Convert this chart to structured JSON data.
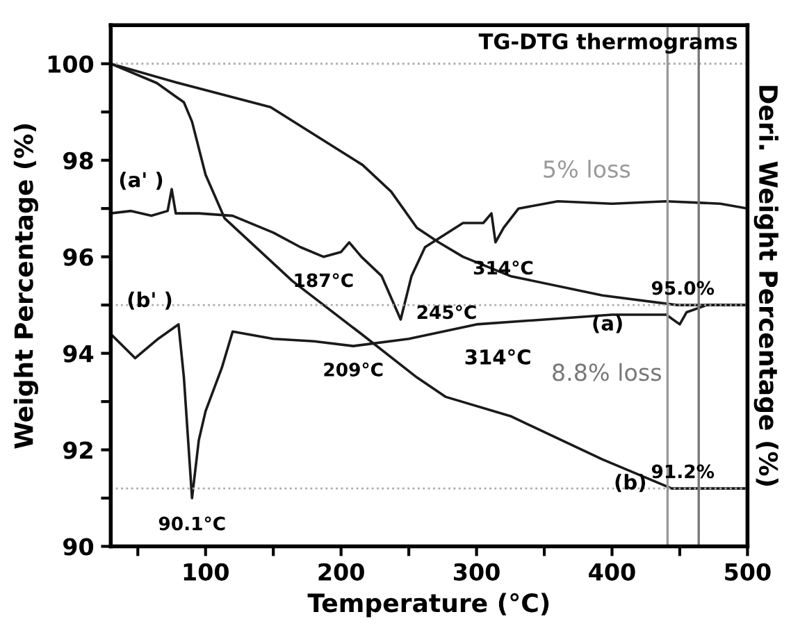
{
  "chart_data": {
    "type": "line",
    "title": "TG-DTG thermograms",
    "xlabel": "Temperature (°C)",
    "ylabel": "Weight Percentage (%)",
    "y2label": "Deri. Weight Percentage (%)",
    "xlim": [
      30,
      500
    ],
    "ylim": [
      90,
      100.8
    ],
    "xticks": [
      {
        "value": 50,
        "label": null
      },
      100,
      {
        "value": 150,
        "label": null
      },
      200,
      {
        "value": 250,
        "label": null
      },
      300,
      {
        "value": 350,
        "label": null
      },
      400,
      {
        "value": 450,
        "label": null
      },
      500
    ],
    "yticks": [
      90,
      {
        "value": 91,
        "label": null
      },
      92,
      {
        "value": 93,
        "label": null
      },
      94,
      {
        "value": 95,
        "label": null
      },
      96,
      {
        "value": 97,
        "label": null
      },
      98,
      {
        "value": 99,
        "label": null
      },
      100
    ],
    "grid": false,
    "legend": false,
    "marker": "none",
    "line_style": "solid",
    "series": [
      {
        "color": "#1a1a1a",
        "x": [
          30,
          80,
          148,
          216,
          237,
          256,
          272,
          290,
          325,
          393,
          448,
          500
        ],
        "values": [
          100.0,
          99.6,
          99.1,
          97.9,
          97.35,
          96.6,
          96.3,
          96.0,
          95.6,
          95.2,
          95.0,
          95.0
        ]
      },
      {
        "color": "#1a1a1a",
        "x": [
          30,
          64,
          84,
          90,
          100,
          114,
          164,
          215,
          256,
          277,
          325,
          393,
          444,
          500
        ],
        "values": [
          100.0,
          99.6,
          99.2,
          98.8,
          97.7,
          96.8,
          95.5,
          94.4,
          93.5,
          93.1,
          92.7,
          91.8,
          91.2,
          91.2
        ]
      },
      {
        "color": "#1a1a1a",
        "x": [
          30,
          45,
          60,
          72,
          75,
          78,
          95,
          120,
          150,
          170,
          187,
          200,
          206,
          215,
          230,
          244,
          252,
          262,
          290,
          305,
          311,
          314,
          320,
          331,
          360,
          400,
          440,
          480,
          500
        ],
        "values": [
          96.9,
          96.95,
          96.85,
          96.95,
          97.4,
          96.9,
          96.9,
          96.85,
          96.5,
          96.2,
          96.0,
          96.1,
          96.3,
          96.0,
          95.6,
          94.7,
          95.6,
          96.2,
          96.7,
          96.7,
          96.9,
          96.3,
          96.6,
          97.0,
          97.15,
          97.1,
          97.15,
          97.1,
          97.0
        ]
      },
      {
        "color": "#1a1a1a",
        "x": [
          30,
          48,
          65,
          80,
          84,
          90,
          95,
          100,
          112,
          120,
          150,
          180,
          209,
          250,
          300,
          350,
          400,
          440,
          450,
          455,
          470,
          500
        ],
        "values": [
          94.4,
          93.9,
          94.3,
          94.6,
          93.5,
          91.0,
          92.2,
          92.8,
          93.7,
          94.45,
          94.3,
          94.25,
          94.15,
          94.3,
          94.6,
          94.7,
          94.8,
          94.8,
          94.6,
          94.85,
          95.0,
          95.0
        ]
      }
    ],
    "ref_lines": [
      {
        "axis": "y",
        "value": 100,
        "color": "#aaaaaa",
        "line_style": "dotted"
      },
      {
        "axis": "y",
        "value": 95.0,
        "color": "#aaaaaa",
        "line_style": "dotted"
      },
      {
        "axis": "y",
        "value": 91.2,
        "color": "#aaaaaa",
        "line_style": "dotted"
      },
      {
        "axis": "x",
        "value": 441,
        "label": "5% loss",
        "color": "#999999",
        "line_style": "solid"
      },
      {
        "axis": "x",
        "value": 464,
        "label": "8.8% loss",
        "color": "#777777",
        "line_style": "solid"
      }
    ],
    "annotations": [
      "(a)",
      "(b)",
      "(a' )",
      "(b' )",
      {
        "text": "95.0%",
        "x": 480,
        "y": 95.0
      },
      {
        "text": "91.2%",
        "x": 480,
        "y": 91.2
      },
      {
        "text": "187°C",
        "x": 187,
        "y": 96.0
      },
      {
        "text": "245°C",
        "x": 244,
        "y": 94.7
      },
      {
        "text": "314°C",
        "x": 314,
        "y": 96.3
      },
      {
        "text": "209°C",
        "x": 209,
        "y": 94.15
      },
      "314°C",
      {
        "text": "90.1°C",
        "x": 90,
        "y": 91.0
      }
    ]
  }
}
